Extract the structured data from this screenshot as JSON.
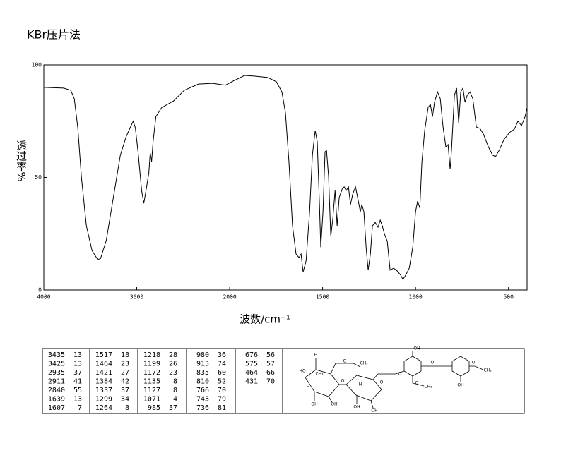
{
  "chart_data": {
    "type": "line",
    "title": "KBr压片法",
    "x_label": "波数/cm⁻¹",
    "y_label": "透过率%",
    "color": "#000000",
    "xlim": [
      4000,
      400
    ],
    "xticks": [
      4000,
      3000,
      2000,
      1500,
      1000,
      500
    ],
    "ylim": [
      0,
      100
    ],
    "yticks": [
      0,
      50,
      100
    ],
    "x": [
      4000,
      3786,
      3710,
      3672,
      3634,
      3595,
      3542,
      3481,
      3420,
      3389,
      3328,
      3252,
      3176,
      3115,
      3061,
      3038,
      3015,
      2985,
      2947,
      2924,
      2901,
      2870,
      2855,
      2840,
      2824,
      2794,
      2733,
      2603,
      2489,
      2336,
      2183,
      2046,
      1977,
      1920,
      1863,
      1795,
      1749,
      1719,
      1700,
      1681,
      1662,
      1643,
      1627,
      1616,
      1605,
      1589,
      1570,
      1555,
      1540,
      1529,
      1517,
      1510,
      1498,
      1487,
      1479,
      1468,
      1456,
      1445,
      1433,
      1422,
      1411,
      1395,
      1384,
      1373,
      1361,
      1350,
      1338,
      1323,
      1308,
      1297,
      1289,
      1278,
      1266,
      1255,
      1243,
      1232,
      1217,
      1202,
      1190,
      1179,
      1167,
      1152,
      1137,
      1118,
      1099,
      1080,
      1068,
      1053,
      1034,
      1015,
      1000,
      989,
      977,
      966,
      951,
      932,
      920,
      909,
      898,
      882,
      867,
      852,
      837,
      825,
      814,
      806,
      791,
      779,
      768,
      757,
      745,
      734,
      722,
      707,
      692,
      673,
      654,
      635,
      608,
      586,
      570,
      548,
      525,
      494,
      468,
      449,
      430,
      411,
      400
    ],
    "values": [
      90,
      89.7,
      88.7,
      85,
      72,
      50,
      28.5,
      17.5,
      13.5,
      14,
      22,
      41,
      60,
      68,
      73,
      75,
      72,
      61,
      44,
      38.5,
      44,
      52,
      61,
      57,
      66,
      77,
      81,
      84,
      88.7,
      91.5,
      91.8,
      91,
      93,
      95.3,
      95,
      94.4,
      92.5,
      88,
      78.7,
      56.7,
      28.5,
      16,
      14.4,
      16,
      8,
      12.9,
      34.8,
      60,
      70.8,
      66,
      38,
      19,
      34.8,
      61.4,
      62,
      50.5,
      23.8,
      31.7,
      44.2,
      28.5,
      41,
      44.8,
      45.8,
      44.2,
      45.8,
      38,
      42.6,
      45.8,
      39.5,
      34.8,
      38,
      34.8,
      19,
      8.8,
      16,
      28.5,
      30,
      27.9,
      31,
      28.5,
      24.8,
      21.6,
      8.8,
      9.7,
      8.5,
      6.6,
      4.7,
      6.6,
      9.7,
      19,
      34.8,
      39.5,
      36.4,
      56.7,
      70.8,
      81.2,
      82.4,
      77,
      83.4,
      88,
      85,
      72.4,
      63.6,
      64.6,
      53.6,
      63,
      86.5,
      89.7,
      74,
      88,
      89.7,
      83.4,
      86.5,
      88,
      85,
      72.4,
      71.8,
      69.3,
      63.6,
      60,
      59.2,
      62.4,
      66.8,
      70,
      71.5,
      75,
      73,
      77,
      81
    ]
  },
  "peak_table": [
    [
      [
        3435,
        13
      ],
      [
        3425,
        13
      ],
      [
        2935,
        37
      ],
      [
        2911,
        41
      ],
      [
        2840,
        55
      ],
      [
        1639,
        13
      ],
      [
        1607,
        7
      ]
    ],
    [
      [
        1517,
        18
      ],
      [
        1464,
        23
      ],
      [
        1421,
        27
      ],
      [
        1384,
        42
      ],
      [
        1337,
        37
      ],
      [
        1299,
        34
      ],
      [
        1264,
        8
      ]
    ],
    [
      [
        1218,
        28
      ],
      [
        1199,
        26
      ],
      [
        1172,
        23
      ],
      [
        1135,
        8
      ],
      [
        1127,
        8
      ],
      [
        1071,
        4
      ],
      [
        985,
        37
      ]
    ],
    [
      [
        980,
        36
      ],
      [
        913,
        74
      ],
      [
        835,
        60
      ],
      [
        810,
        52
      ],
      [
        766,
        70
      ],
      [
        743,
        79
      ],
      [
        736,
        81
      ]
    ],
    [
      [
        676,
        56
      ],
      [
        575,
        57
      ],
      [
        464,
        66
      ],
      [
        431,
        70
      ]
    ]
  ],
  "structure": {
    "labels": [
      "H",
      "HO",
      "CH₃",
      "H",
      "OH",
      "OH",
      "O",
      "CH₃",
      "O",
      "H",
      "OH",
      "OH",
      "O",
      "OH",
      "O",
      "O",
      "CH₃",
      "O",
      "O",
      "CH₃",
      "OH"
    ]
  }
}
